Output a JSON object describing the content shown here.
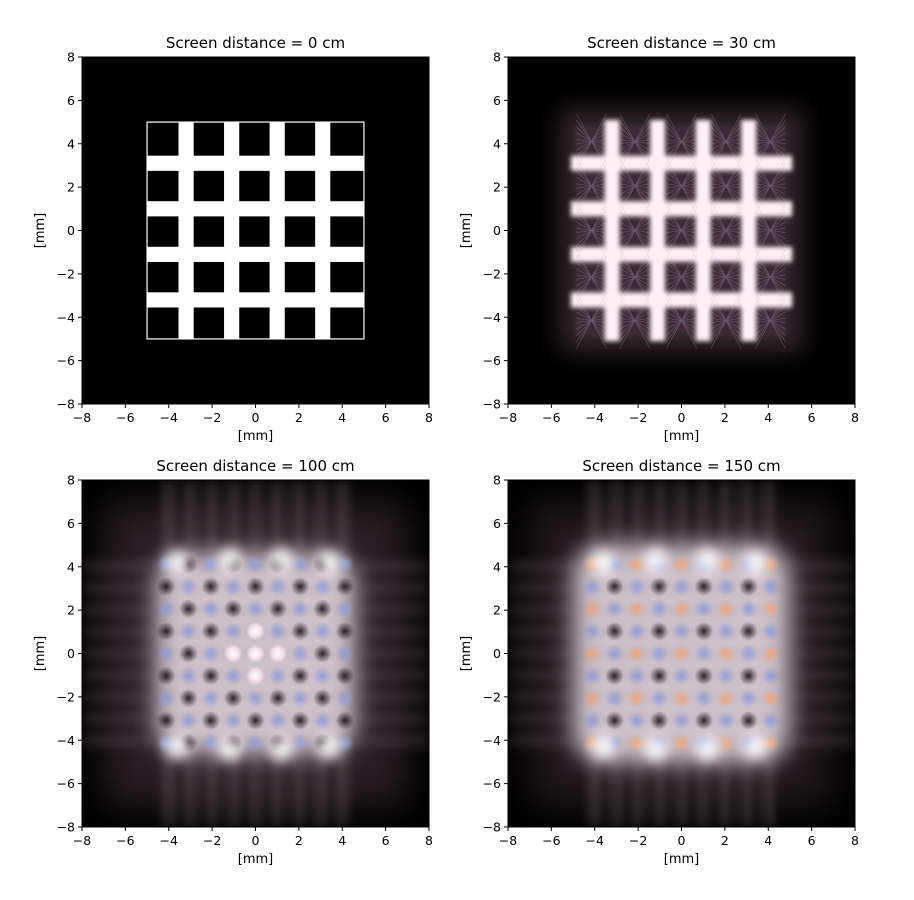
{
  "chart_data": [
    {
      "type": "heatmap",
      "title": "Screen distance = 0 cm",
      "xlabel": "[mm]",
      "ylabel": "[mm]",
      "xlim": [
        -8,
        8
      ],
      "ylim": [
        -8,
        8
      ],
      "xticks": [
        -8,
        -6,
        -4,
        -2,
        0,
        2,
        4,
        6,
        8
      ],
      "yticks": [
        -8,
        -6,
        -4,
        -2,
        0,
        2,
        4,
        6,
        8
      ],
      "screen_distance_cm": 0,
      "description_values": {
        "aperture_extent_mm": [
          -5,
          5
        ],
        "grid_lines_mm": [
          -3.2,
          -1.1,
          1.0,
          3.1
        ]
      },
      "grid": false
    },
    {
      "type": "heatmap",
      "title": "Screen distance = 30 cm",
      "xlabel": "[mm]",
      "ylabel": "[mm]",
      "xlim": [
        -8,
        8
      ],
      "ylim": [
        -8,
        8
      ],
      "xticks": [
        -8,
        -6,
        -4,
        -2,
        0,
        2,
        4,
        6,
        8
      ],
      "yticks": [
        -8,
        -6,
        -4,
        -2,
        0,
        2,
        4,
        6,
        8
      ],
      "screen_distance_cm": 30,
      "grid": false
    },
    {
      "type": "heatmap",
      "title": "Screen distance = 100 cm",
      "xlabel": "[mm]",
      "ylabel": "[mm]",
      "xlim": [
        -8,
        8
      ],
      "ylim": [
        -8,
        8
      ],
      "xticks": [
        -8,
        -6,
        -4,
        -2,
        0,
        2,
        4,
        6,
        8
      ],
      "yticks": [
        -8,
        -6,
        -4,
        -2,
        0,
        2,
        4,
        6,
        8
      ],
      "screen_distance_cm": 100,
      "grid": false
    },
    {
      "type": "heatmap",
      "title": "Screen distance = 150 cm",
      "xlabel": "[mm]",
      "ylabel": "[mm]",
      "xlim": [
        -8,
        8
      ],
      "ylim": [
        -8,
        8
      ],
      "xticks": [
        -8,
        -6,
        -4,
        -2,
        0,
        2,
        4,
        6,
        8
      ],
      "yticks": [
        -8,
        -6,
        -4,
        -2,
        0,
        2,
        4,
        6,
        8
      ],
      "screen_distance_cm": 150,
      "grid": false
    }
  ],
  "colors": {
    "background": "#000000",
    "aperture": "#ffffff",
    "glow": "#fff0f6",
    "blue_fringe": "#9aa6d6",
    "orange_fringe": "#e8a07a"
  }
}
